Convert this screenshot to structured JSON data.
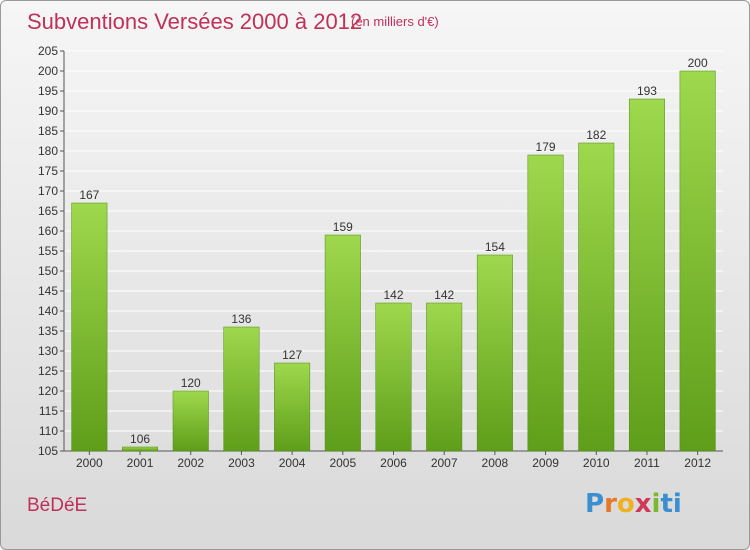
{
  "header": {
    "title": "Subventions Versées 2000 à 2012",
    "unit": "(en milliers d'€)"
  },
  "footer": {
    "commune": "BéDéE",
    "logo": [
      "P",
      "r",
      "o",
      "x",
      "i",
      "ti"
    ]
  },
  "colors": {
    "bar_top": "#9ed84d",
    "bar_bottom": "#5f9e1a",
    "title": "#c0305a",
    "grid": "#ffffff"
  },
  "chart_data": {
    "type": "bar",
    "title": "Subventions Versées 2000 à 2012",
    "subtitle": "(en milliers d'€)",
    "xlabel": "",
    "ylabel": "",
    "categories": [
      "2000",
      "2001",
      "2002",
      "2003",
      "2004",
      "2005",
      "2006",
      "2007",
      "2008",
      "2009",
      "2010",
      "2011",
      "2012"
    ],
    "values": [
      167,
      106,
      120,
      136,
      127,
      159,
      142,
      142,
      154,
      179,
      182,
      193,
      200
    ],
    "ylim": [
      105,
      205
    ],
    "ytick_step": 5,
    "grid": true,
    "data_labels": true
  }
}
